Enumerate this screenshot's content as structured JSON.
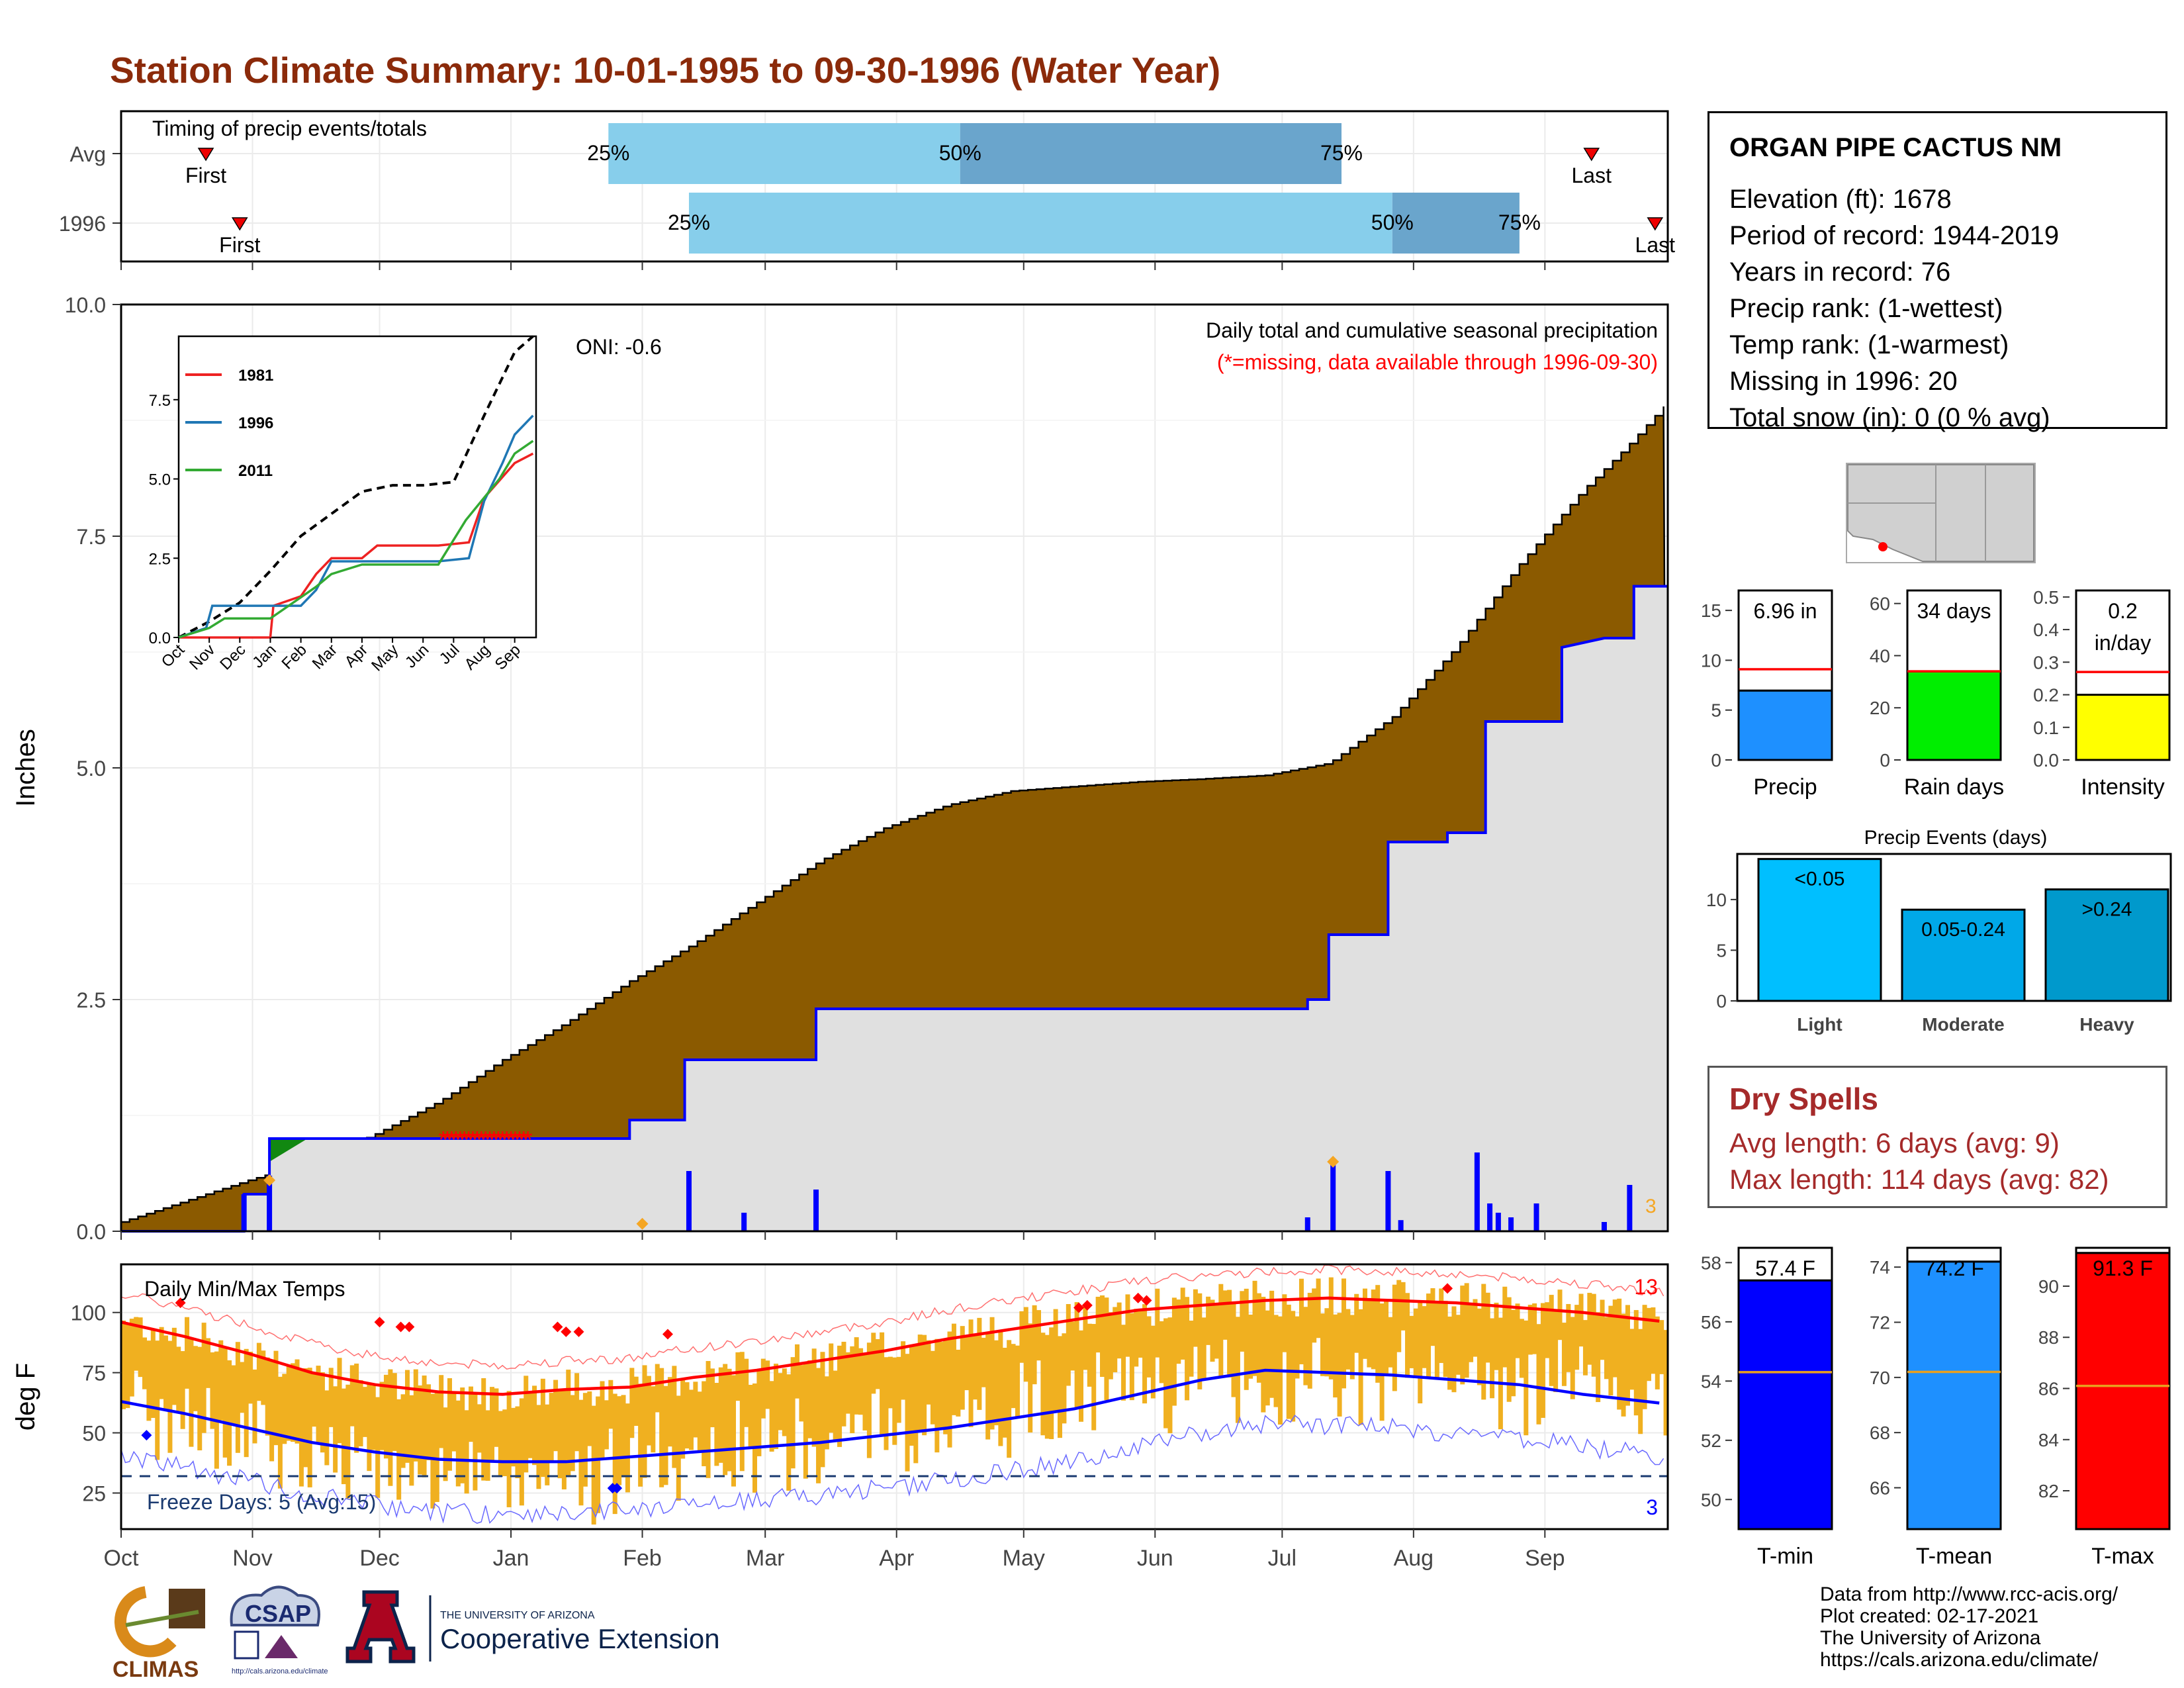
{
  "title": "Station Climate Summary: 10-01-1995 to 09-30-1996 (Water Year)",
  "colors": {
    "title": "#8b2a0a",
    "cumulative_avg_fill": "#8b5a00",
    "cumulative_year_fill": "#e0e0e0",
    "cumulative_year_line": "#0000ff",
    "surplus_fill": "#118811",
    "timing_light": "#87ceeb",
    "timing_dark": "#6aa5cc",
    "temp_bars": "#f0b020",
    "max_line": "#ff0000",
    "min_line": "#0000ff",
    "precip_bar": "#1e90ff",
    "raindays_bar": "#00ee00",
    "intensity_bar": "#ffff00",
    "tmin_bar": "#0000ff",
    "tmean_bar": "#1e90ff",
    "tmax_bar": "#ff0000",
    "light_bar": "#00bfff",
    "moderate_bar": "#00a8e8",
    "heavy_bar": "#0099cc",
    "dry_spells": "#a52a2a"
  },
  "timing": {
    "title": "Timing of precip events/totals",
    "rows": [
      {
        "label": "Avg",
        "first_label": "First",
        "last_label": "Last",
        "p25": "25%",
        "p50": "50%",
        "p75": "75%"
      },
      {
        "label": "1996",
        "first_label": "First",
        "last_label": "Last",
        "p25": "25%",
        "p50": "50%",
        "p75": "75%"
      }
    ]
  },
  "station": {
    "name": "ORGAN PIPE CACTUS NM",
    "lines": [
      "Elevation (ft): 1678",
      "Period of record: 1944-2019",
      "Years in record: 76",
      "Precip rank:  (1-wettest)",
      "Temp rank:  (1-warmest)",
      "Missing in 1996: 20",
      "Total snow (in): 0 (0 % avg)"
    ]
  },
  "main_precip": {
    "ylabel": "Inches",
    "header": "Daily total and cumulative seasonal precipitation",
    "missing_note": "(*=missing, data available through 1996-09-30)",
    "oni": "ONI: -0.6",
    "yticks": [
      "0.0",
      "2.5",
      "5.0",
      "7.5",
      "10.0"
    ],
    "missing_marker_label": "3"
  },
  "inset": {
    "yticks": [
      "0.0",
      "2.5",
      "5.0",
      "7.5"
    ],
    "xticks": [
      "Oct",
      "Nov",
      "Dec",
      "Jan",
      "Feb",
      "Mar",
      "Apr",
      "May",
      "Jun",
      "Jul",
      "Aug",
      "Sep"
    ],
    "legend": [
      "1981",
      "1996",
      "2011"
    ]
  },
  "temps": {
    "title": "Daily Min/Max Temps",
    "ylabel": "deg F",
    "yticks": [
      "25",
      "50",
      "75",
      "100"
    ],
    "freeze_text": "Freeze Days: 5 (Avg:15)",
    "max_count": "13",
    "min_count": "3"
  },
  "months": [
    "Oct",
    "Nov",
    "Dec",
    "Jan",
    "Feb",
    "Mar",
    "Apr",
    "May",
    "Jun",
    "Jul",
    "Aug",
    "Sep"
  ],
  "small_bars": {
    "precip": {
      "value_label": "6.96 in",
      "axis_label": "Precip",
      "yticks": [
        "0",
        "5",
        "10",
        "15"
      ]
    },
    "raindays": {
      "value_label": "34 days",
      "axis_label": "Rain days",
      "yticks": [
        "0",
        "20",
        "40",
        "60"
      ]
    },
    "intensity": {
      "value_label_1": "0.2",
      "value_label_2": "in/day",
      "axis_label": "Intensity",
      "yticks": [
        "0.0",
        "0.1",
        "0.2",
        "0.3",
        "0.4",
        "0.5"
      ]
    }
  },
  "events": {
    "title": "Precip Events (days)",
    "yticks": [
      "0",
      "5",
      "10"
    ],
    "categories": [
      "Light",
      "Moderate",
      "Heavy"
    ],
    "bar_labels": [
      "<0.05",
      "0.05-0.24",
      ">0.24"
    ]
  },
  "dry_spells": {
    "title": "Dry Spells",
    "avg": "Avg length: 6 days (avg: 9)",
    "max": "Max length: 114 days (avg: 82)"
  },
  "temp_bars": {
    "tmin": {
      "value_label": "57.4 F",
      "axis_label": "T-min",
      "yticks": [
        "50",
        "52",
        "54",
        "56",
        "58"
      ]
    },
    "tmean": {
      "value_label": "74.2 F",
      "axis_label": "T-mean",
      "yticks": [
        "66",
        "68",
        "70",
        "72",
        "74"
      ]
    },
    "tmax": {
      "value_label": "91.3 F",
      "axis_label": "T-max",
      "yticks": [
        "82",
        "84",
        "86",
        "88",
        "90"
      ]
    }
  },
  "logos": {
    "climas": "CLIMAS",
    "csap": "CSAP",
    "csap_url": "http://cals.arizona.edu/climate",
    "ua_small": "THE UNIVERSITY OF ARIZONA",
    "ua_ext": "Cooperative Extension"
  },
  "credits": [
    "Data from http://www.rcc-acis.org/",
    "Plot created: 02-17-2021",
    "The University of Arizona",
    "https://cals.arizona.edu/climate/"
  ],
  "chart_data": [
    {
      "type": "area",
      "name": "cumulative_precip",
      "x_unit": "day of water year (0 = Oct 1)",
      "ylim": [
        0,
        10
      ],
      "grid": true,
      "avg_cumulative": [
        [
          0,
          0.1
        ],
        [
          30,
          0.55
        ],
        [
          45,
          0.75
        ],
        [
          60,
          1.05
        ],
        [
          75,
          1.4
        ],
        [
          90,
          1.85
        ],
        [
          105,
          2.25
        ],
        [
          120,
          2.7
        ],
        [
          135,
          3.1
        ],
        [
          150,
          3.55
        ],
        [
          165,
          4.0
        ],
        [
          180,
          4.35
        ],
        [
          195,
          4.6
        ],
        [
          210,
          4.75
        ],
        [
          225,
          4.8
        ],
        [
          240,
          4.85
        ],
        [
          255,
          4.88
        ],
        [
          270,
          4.92
        ],
        [
          285,
          5.05
        ],
        [
          300,
          5.55
        ],
        [
          315,
          6.3
        ],
        [
          330,
          7.2
        ],
        [
          345,
          8.0
        ],
        [
          355,
          8.45
        ],
        [
          365,
          8.95
        ]
      ],
      "year_cumulative": [
        [
          0,
          0.0
        ],
        [
          29,
          0.0
        ],
        [
          29,
          0.4
        ],
        [
          35,
          0.4
        ],
        [
          35,
          1.0
        ],
        [
          120,
          1.0
        ],
        [
          120,
          1.2
        ],
        [
          133,
          1.2
        ],
        [
          133,
          1.85
        ],
        [
          164,
          1.85
        ],
        [
          164,
          2.4
        ],
        [
          280,
          2.4
        ],
        [
          280,
          2.5
        ],
        [
          285,
          2.5
        ],
        [
          285,
          3.2
        ],
        [
          299,
          3.2
        ],
        [
          299,
          4.2
        ],
        [
          313,
          4.2
        ],
        [
          313,
          4.3
        ],
        [
          322,
          4.3
        ],
        [
          322,
          5.5
        ],
        [
          340,
          5.5
        ],
        [
          340,
          6.3
        ],
        [
          350,
          6.4
        ],
        [
          357,
          6.4
        ],
        [
          357,
          6.96
        ],
        [
          365,
          6.96
        ]
      ],
      "daily_precip_bars": [
        [
          29,
          0.4
        ],
        [
          35,
          0.6
        ],
        [
          134,
          0.65
        ],
        [
          147,
          0.2
        ],
        [
          164,
          0.45
        ],
        [
          280,
          0.15
        ],
        [
          286,
          0.75
        ],
        [
          299,
          0.65
        ],
        [
          302,
          0.12
        ],
        [
          320,
          0.85
        ],
        [
          323,
          0.3
        ],
        [
          325,
          0.2
        ],
        [
          328,
          0.15
        ],
        [
          334,
          0.3
        ],
        [
          350,
          0.1
        ],
        [
          356,
          0.5
        ]
      ],
      "missing_days": [
        76,
        96
      ]
    },
    {
      "type": "line",
      "name": "inset_cumulative",
      "x_unit": "month index",
      "ylim": [
        0,
        9.5
      ],
      "series": [
        {
          "name": "avg",
          "values": [
            [
              0,
              0
            ],
            [
              1,
              0.5
            ],
            [
              2,
              1.1
            ],
            [
              3,
              2.1
            ],
            [
              4,
              3.2
            ],
            [
              5,
              3.9
            ],
            [
              6,
              4.6
            ],
            [
              7,
              4.8
            ],
            [
              8,
              4.8
            ],
            [
              9,
              4.9
            ],
            [
              10,
              7.0
            ],
            [
              11,
              9.0
            ],
            [
              11.6,
              9.5
            ]
          ]
        },
        {
          "name": "1981",
          "values": [
            [
              0,
              0
            ],
            [
              3,
              0
            ],
            [
              3.1,
              1.0
            ],
            [
              4,
              1.3
            ],
            [
              4.5,
              2.0
            ],
            [
              5,
              2.5
            ],
            [
              6,
              2.5
            ],
            [
              6.5,
              2.9
            ],
            [
              8.5,
              2.9
            ],
            [
              9.5,
              3.0
            ],
            [
              10,
              4.4
            ],
            [
              11,
              5.5
            ],
            [
              11.6,
              5.8
            ]
          ]
        },
        {
          "name": "1996",
          "values": [
            [
              0,
              0
            ],
            [
              0.9,
              0.3
            ],
            [
              1.1,
              1.0
            ],
            [
              4,
              1.0
            ],
            [
              4.5,
              1.5
            ],
            [
              5,
              2.4
            ],
            [
              8.5,
              2.4
            ],
            [
              9.5,
              2.5
            ],
            [
              10,
              4.3
            ],
            [
              10.6,
              5.5
            ],
            [
              11,
              6.4
            ],
            [
              11.6,
              7.0
            ]
          ]
        },
        {
          "name": "2011",
          "values": [
            [
              0,
              0
            ],
            [
              1,
              0.3
            ],
            [
              1.5,
              0.6
            ],
            [
              3,
              0.6
            ],
            [
              4.5,
              1.6
            ],
            [
              5,
              2.0
            ],
            [
              6,
              2.3
            ],
            [
              8.5,
              2.3
            ],
            [
              9.4,
              3.7
            ],
            [
              10.5,
              5.0
            ],
            [
              11,
              5.8
            ],
            [
              11.6,
              6.2
            ]
          ]
        }
      ]
    },
    {
      "type": "line",
      "name": "daily_temps",
      "ylim": [
        10,
        120
      ],
      "freeze_line": 32,
      "normal_max": [
        [
          0,
          96
        ],
        [
          15,
          90
        ],
        [
          30,
          83
        ],
        [
          45,
          75
        ],
        [
          60,
          70
        ],
        [
          75,
          67
        ],
        [
          90,
          66
        ],
        [
          105,
          68
        ],
        [
          120,
          69
        ],
        [
          135,
          73
        ],
        [
          150,
          76
        ],
        [
          165,
          80
        ],
        [
          180,
          84
        ],
        [
          195,
          89
        ],
        [
          210,
          93
        ],
        [
          225,
          97
        ],
        [
          240,
          101
        ],
        [
          255,
          103
        ],
        [
          270,
          105
        ],
        [
          285,
          106
        ],
        [
          300,
          105
        ],
        [
          315,
          104
        ],
        [
          330,
          102
        ],
        [
          345,
          100
        ],
        [
          365,
          96
        ]
      ],
      "normal_min": [
        [
          0,
          63
        ],
        [
          15,
          58
        ],
        [
          30,
          52
        ],
        [
          45,
          46
        ],
        [
          60,
          42
        ],
        [
          75,
          39
        ],
        [
          90,
          38
        ],
        [
          105,
          38
        ],
        [
          120,
          40
        ],
        [
          135,
          42
        ],
        [
          150,
          44
        ],
        [
          165,
          46
        ],
        [
          180,
          49
        ],
        [
          195,
          52
        ],
        [
          210,
          56
        ],
        [
          225,
          60
        ],
        [
          240,
          66
        ],
        [
          255,
          72
        ],
        [
          270,
          76
        ],
        [
          285,
          75
        ],
        [
          300,
          74
        ],
        [
          315,
          72
        ],
        [
          330,
          70
        ],
        [
          345,
          66
        ],
        [
          365,
          62
        ]
      ]
    },
    {
      "type": "bar",
      "name": "precip_total",
      "categories": [
        "Precip"
      ],
      "values": [
        6.96
      ],
      "normal": 9.1,
      "ylim": [
        0,
        17
      ]
    },
    {
      "type": "bar",
      "name": "rain_days",
      "categories": [
        "Rain days"
      ],
      "values": [
        34
      ],
      "normal": 34,
      "ylim": [
        0,
        65
      ]
    },
    {
      "type": "bar",
      "name": "intensity",
      "categories": [
        "Intensity"
      ],
      "values": [
        0.2
      ],
      "normal": 0.27,
      "ylim": [
        0,
        0.52
      ]
    },
    {
      "type": "bar",
      "name": "precip_events",
      "categories": [
        "Light",
        "Moderate",
        "Heavy"
      ],
      "values": [
        14,
        9,
        11
      ],
      "ylim": [
        0,
        14.5
      ]
    },
    {
      "type": "bar",
      "name": "tmin",
      "categories": [
        "T-min"
      ],
      "values": [
        57.4
      ],
      "normal": 54.3,
      "ylim": [
        49,
        58.5
      ]
    },
    {
      "type": "bar",
      "name": "tmean",
      "categories": [
        "T-mean"
      ],
      "values": [
        74.2
      ],
      "normal": 70.2,
      "ylim": [
        64.5,
        74.7
      ]
    },
    {
      "type": "bar",
      "name": "tmax",
      "categories": [
        "T-max"
      ],
      "values": [
        91.3
      ],
      "normal": 86.1,
      "ylim": [
        80.5,
        91.5
      ]
    }
  ]
}
